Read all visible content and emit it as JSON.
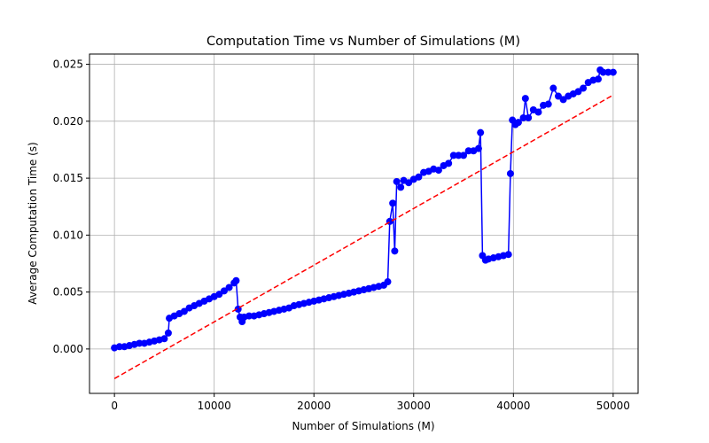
{
  "chart_data": {
    "type": "line",
    "title": "Computation Time vs Number of Simulations (M)",
    "x_label": "Number of Simulations (M)",
    "y_label": "Average Computation Time (s)",
    "xlim": [
      -2500,
      52500
    ],
    "ylim": [
      -0.0039,
      0.0259
    ],
    "xticks": [
      0,
      10000,
      20000,
      30000,
      40000,
      50000
    ],
    "yticks": [
      {
        "value": 0,
        "label": "0.000"
      },
      {
        "value": 0.005,
        "label": "0.005"
      },
      {
        "value": 0.01,
        "label": "0.010"
      },
      {
        "value": 0.015,
        "label": "0.015"
      },
      {
        "value": 0.02,
        "label": "0.020"
      },
      {
        "value": 0.025,
        "label": "0.025"
      }
    ],
    "grid": true,
    "series": [
      {
        "color": "#0000ff",
        "linestyle": "solid",
        "marker": "circle",
        "x": [
          0,
          500,
          1000,
          1500,
          2000,
          2500,
          3000,
          3500,
          4000,
          4500,
          5000,
          5400,
          5500,
          6000,
          6500,
          7000,
          7500,
          8000,
          8500,
          9000,
          9500,
          10000,
          10500,
          11000,
          11500,
          12000,
          12200,
          12400,
          12600,
          12800,
          13000,
          13500,
          14000,
          14500,
          15000,
          15500,
          16000,
          16500,
          17000,
          17500,
          18000,
          18500,
          19000,
          19500,
          20000,
          20500,
          21000,
          21500,
          22000,
          22500,
          23000,
          23500,
          24000,
          24500,
          25000,
          25500,
          26000,
          26500,
          27000,
          27400,
          27600,
          27900,
          28100,
          28300,
          28700,
          29000,
          29500,
          30000,
          30500,
          31000,
          31500,
          32000,
          32500,
          33000,
          33500,
          34000,
          34500,
          35000,
          35500,
          36000,
          36500,
          36700,
          36900,
          37200,
          37500,
          38000,
          38500,
          39000,
          39500,
          39700,
          39900,
          40200,
          40500,
          41000,
          41200,
          41500,
          42000,
          42500,
          43000,
          43500,
          44000,
          44500,
          45000,
          45500,
          46000,
          46500,
          47000,
          47500,
          48000,
          48500,
          48700,
          49000,
          49500,
          50000
        ],
        "values": [
          0.0001,
          0.0002,
          0.0002,
          0.0003,
          0.0004,
          0.0005,
          0.0005,
          0.0006,
          0.0007,
          0.0008,
          0.0009,
          0.0014,
          0.0027,
          0.0029,
          0.0031,
          0.0033,
          0.0036,
          0.0038,
          0.004,
          0.0042,
          0.0044,
          0.0046,
          0.0048,
          0.0051,
          0.0054,
          0.0058,
          0.006,
          0.0035,
          0.0028,
          0.0024,
          0.0028,
          0.0029,
          0.0029,
          0.003,
          0.0031,
          0.0032,
          0.0033,
          0.0034,
          0.0035,
          0.0036,
          0.0038,
          0.0039,
          0.004,
          0.0041,
          0.0042,
          0.0043,
          0.0044,
          0.0045,
          0.0046,
          0.0047,
          0.0048,
          0.0049,
          0.005,
          0.0051,
          0.0052,
          0.0053,
          0.0054,
          0.0055,
          0.0056,
          0.0059,
          0.0112,
          0.0128,
          0.0086,
          0.0147,
          0.0142,
          0.0148,
          0.0146,
          0.0149,
          0.0151,
          0.0155,
          0.0156,
          0.0158,
          0.0157,
          0.0161,
          0.0163,
          0.017,
          0.017,
          0.017,
          0.0174,
          0.0174,
          0.0176,
          0.019,
          0.0082,
          0.0078,
          0.0079,
          0.008,
          0.0081,
          0.0082,
          0.0083,
          0.0154,
          0.0201,
          0.0197,
          0.0199,
          0.0203,
          0.022,
          0.0203,
          0.021,
          0.0208,
          0.0214,
          0.0215,
          0.0229,
          0.0222,
          0.0219,
          0.0222,
          0.0224,
          0.0226,
          0.0229,
          0.0234,
          0.0236,
          0.0237,
          0.0245,
          0.0243,
          0.0243,
          0.0243
        ]
      },
      {
        "color": "#ff0000",
        "linestyle": "dashed",
        "marker": "none",
        "x": [
          0,
          50000
        ],
        "values": [
          -0.0026,
          0.0223
        ]
      }
    ]
  }
}
